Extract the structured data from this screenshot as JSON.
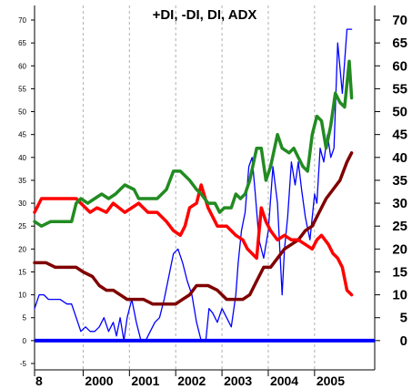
{
  "chart_data": {
    "type": "line",
    "title": "+DI, -DI, DI, ADX",
    "xlabel": "",
    "ylabel": "",
    "x_tick_labels": [
      "8",
      "2000",
      "2001",
      "2002",
      "2003",
      "2004",
      "2005"
    ],
    "x_range": [
      1998.95,
      2006.3
    ],
    "ylim": [
      -5,
      70
    ],
    "left_y_ticks": [
      -5,
      0,
      5,
      10,
      15,
      20,
      25,
      30,
      35,
      40,
      45,
      50,
      55,
      60,
      65,
      70
    ],
    "right_y_ticks": [
      0,
      5,
      10,
      15,
      20,
      25,
      30,
      35,
      40,
      45,
      50,
      55,
      60,
      65,
      70
    ],
    "grid": "vertical dashed at year boundaries",
    "colors": {
      "plus_di": "#228B22",
      "minus_di": "#ff0000",
      "dx": "#0000ff",
      "adx": "#800000",
      "zero_line": "#0000ff"
    },
    "series": [
      {
        "key": "plus_di",
        "x": [
          1998.95,
          1999.1,
          1999.3,
          1999.5,
          1999.6,
          1999.75,
          1999.85,
          1999.95,
          2000.1,
          2000.25,
          2000.4,
          2000.55,
          2000.7,
          2000.9,
          2001.1,
          2001.2,
          2001.4,
          2001.6,
          2001.8,
          2001.95,
          2002.1,
          2002.3,
          2002.45,
          2002.55,
          2002.7,
          2002.85,
          2002.95,
          2003.05,
          2003.2,
          2003.3,
          2003.4,
          2003.5,
          2003.6,
          2003.75,
          2003.85,
          2003.95,
          2004.05,
          2004.2,
          2004.3,
          2004.45,
          2004.55,
          2004.65,
          2004.75,
          2004.85,
          2004.95,
          2005.05,
          2005.15,
          2005.25,
          2005.35,
          2005.45,
          2005.55,
          2005.65,
          2005.75,
          2005.8
        ],
        "values": [
          26,
          25,
          26,
          26,
          26,
          26,
          30,
          31,
          30,
          31,
          32,
          31,
          32,
          34,
          33,
          31,
          31,
          31,
          33,
          37,
          37,
          35,
          33,
          32,
          30,
          30,
          28,
          29,
          29,
          32,
          31,
          32,
          35,
          42,
          42,
          35,
          38,
          45,
          42,
          41,
          42,
          40,
          38,
          37,
          45,
          49,
          48,
          42,
          47,
          54,
          52,
          51,
          61,
          53
        ]
      },
      {
        "key": "minus_di",
        "x": [
          1998.95,
          1999.1,
          1999.3,
          1999.5,
          1999.7,
          1999.85,
          1999.95,
          2000.15,
          2000.3,
          2000.5,
          2000.65,
          2000.9,
          2001.05,
          2001.2,
          2001.4,
          2001.6,
          2001.7,
          2001.8,
          2001.95,
          2002.1,
          2002.2,
          2002.3,
          2002.45,
          2002.55,
          2002.7,
          2002.8,
          2002.9,
          2003.1,
          2003.3,
          2003.45,
          2003.55,
          2003.65,
          2003.75,
          2003.85,
          2003.95,
          2004.05,
          2004.2,
          2004.35,
          2004.5,
          2004.65,
          2004.8,
          2004.95,
          2005.05,
          2005.15,
          2005.3,
          2005.4,
          2005.5,
          2005.6,
          2005.7,
          2005.8
        ],
        "values": [
          28,
          31,
          31,
          31,
          31,
          31,
          30,
          28,
          29,
          28,
          30,
          28,
          29,
          30,
          28,
          28,
          27,
          26,
          24,
          23,
          25,
          29,
          30,
          34,
          29,
          27,
          25,
          25,
          23,
          22,
          20,
          19,
          18,
          29,
          26,
          24,
          22,
          23,
          22,
          22,
          21,
          20,
          22,
          23,
          21,
          19,
          18,
          16,
          11,
          10
        ]
      },
      {
        "key": "dx",
        "x": [
          1998.95,
          1999.05,
          1999.15,
          1999.25,
          1999.35,
          1999.5,
          1999.65,
          1999.75,
          1999.85,
          1999.95,
          2000.05,
          2000.15,
          2000.25,
          2000.35,
          2000.45,
          2000.55,
          2000.65,
          2000.72,
          2000.8,
          2000.88,
          2000.95,
          2001.05,
          2001.15,
          2001.25,
          2001.35,
          2001.45,
          2001.55,
          2001.65,
          2001.75,
          2001.85,
          2001.95,
          2002.05,
          2002.15,
          2002.25,
          2002.35,
          2002.45,
          2002.55,
          2002.65,
          2002.72,
          2002.8,
          2002.9,
          2003.0,
          2003.1,
          2003.2,
          2003.3,
          2003.35,
          2003.42,
          2003.5,
          2003.58,
          2003.65,
          2003.72,
          2003.8,
          2003.9,
          2004.0,
          2004.1,
          2004.2,
          2004.3,
          2004.35,
          2004.42,
          2004.5,
          2004.58,
          2004.65,
          2004.72,
          2004.8,
          2004.9,
          2005.0,
          2005.05,
          2005.12,
          2005.2,
          2005.28,
          2005.35,
          2005.42,
          2005.5,
          2005.6,
          2005.7,
          2005.8
        ],
        "values": [
          7,
          10,
          10,
          9,
          9,
          9,
          8,
          8,
          5,
          2,
          3,
          2,
          2,
          3,
          5,
          2,
          4,
          1,
          5,
          0,
          5,
          9,
          4,
          0,
          0,
          2,
          4,
          5,
          9,
          14,
          19,
          20,
          17,
          13,
          10,
          4,
          0,
          0,
          7,
          6,
          4,
          7,
          5,
          3,
          10,
          17,
          24,
          28,
          38,
          40,
          32,
          22,
          18,
          24,
          38,
          30,
          10,
          20,
          27,
          39,
          34,
          39,
          33,
          27,
          22,
          32,
          30,
          42,
          39,
          45,
          40,
          42,
          65,
          54,
          68,
          68
        ]
      },
      {
        "key": "adx",
        "x": [
          1998.95,
          1999.2,
          1999.4,
          1999.55,
          1999.7,
          1999.85,
          2000.0,
          2000.2,
          2000.35,
          2000.5,
          2000.65,
          2000.8,
          2000.95,
          2001.1,
          2001.3,
          2001.5,
          2001.7,
          2001.85,
          2002.0,
          2002.15,
          2002.3,
          2002.45,
          2002.55,
          2002.7,
          2002.9,
          2003.1,
          2003.3,
          2003.45,
          2003.6,
          2003.75,
          2003.9,
          2004.05,
          2004.2,
          2004.35,
          2004.5,
          2004.65,
          2004.8,
          2004.95,
          2005.1,
          2005.25,
          2005.4,
          2005.55,
          2005.7,
          2005.8
        ],
        "values": [
          17,
          17,
          16,
          16,
          16,
          16,
          15,
          14,
          12,
          11,
          11,
          10,
          9,
          9,
          9,
          8,
          8,
          8,
          8,
          9,
          10,
          12,
          12,
          12,
          11,
          9,
          9,
          9,
          10,
          13,
          16,
          16,
          18,
          20,
          21,
          22,
          24,
          25,
          28,
          31,
          33,
          35,
          39,
          41
        ]
      }
    ]
  }
}
